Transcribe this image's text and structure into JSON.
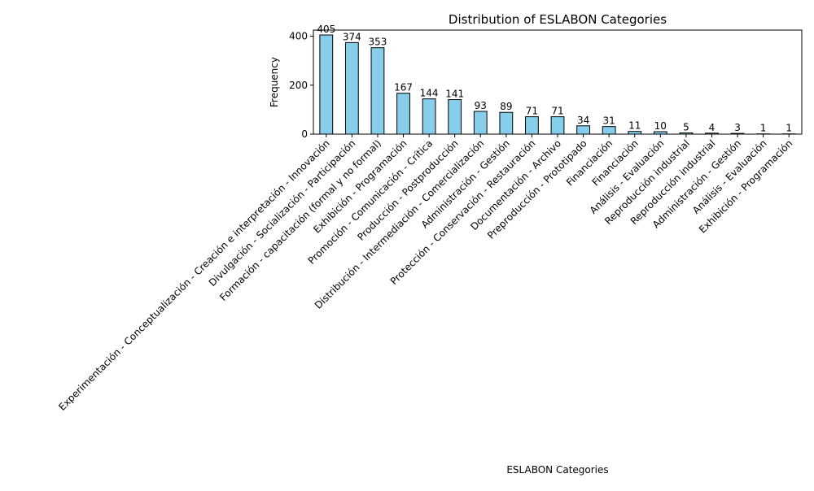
{
  "chart_data": {
    "type": "bar",
    "title": "Distribution of ESLABON Categories",
    "xlabel": "ESLABON Categories",
    "ylabel": "Frequency",
    "ylim": [
      0,
      425
    ],
    "yticks": [
      0,
      200,
      400
    ],
    "grid": false,
    "bar_color": "#87ceeb",
    "edge_color": "#000000",
    "categories": [
      "Experimentación - Conceptualización - Creación e interpretación - Innovación",
      "Divulgación - Socialización - Participación",
      "Formación - capacitación (formal y no formal)",
      "Exhibición - Programación",
      "Promoción - Comunicación - Crítica",
      "Producción - Postproducción",
      "Distribución - Intermediación - Comercialización",
      "Administración - Gestión",
      "Protección - Conservación - Restauración",
      "Documentación - Archivo",
      "Preproducción - Prototipado",
      "Financiación",
      "Financiación",
      "Análisis - Evaluación",
      "Reproducción industrial",
      "Reproducción industrial",
      "Administración - Gestión",
      "Análisis - Evaluación",
      "Exhibición - Programación"
    ],
    "values": [
      405,
      374,
      353,
      167,
      144,
      141,
      93,
      89,
      71,
      71,
      34,
      31,
      11,
      10,
      5,
      4,
      3,
      1,
      1
    ]
  }
}
